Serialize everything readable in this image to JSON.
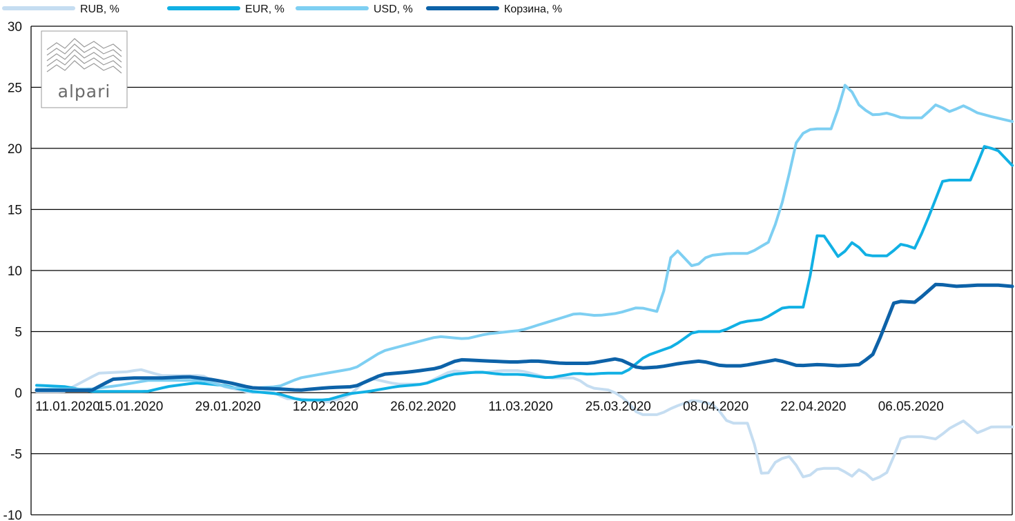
{
  "chart_data": {
    "type": "line",
    "title": "",
    "xlabel": "",
    "ylabel": "",
    "ylim": [
      -10,
      30
    ],
    "yticks": [
      30,
      25,
      20,
      15,
      10,
      5,
      0,
      -5,
      -10
    ],
    "grid": true,
    "legend_position": "top",
    "x_tick_labels": [
      "11.01.2020",
      "15.01.2020",
      "29.01.2020",
      "12.02.2020",
      "26.02.2020",
      "11.03.2020",
      "25.03.2020",
      "08.04.2020",
      "22.04.2020",
      "06.05.2020"
    ],
    "x_tick_index": [
      0,
      9,
      23,
      37,
      51,
      65,
      79,
      93,
      107,
      121
    ],
    "n_points": 141,
    "series": [
      {
        "name": "RUB, %",
        "color": "#c5ddf1",
        "keys": [
          [
            0,
            0.1
          ],
          [
            4,
            0.1
          ],
          [
            9,
            1.6
          ],
          [
            13,
            1.7
          ],
          [
            15,
            1.9
          ],
          [
            18,
            1.4
          ],
          [
            24,
            1.4
          ],
          [
            27,
            0.5
          ],
          [
            31,
            0
          ],
          [
            34,
            0.1
          ],
          [
            36,
            -0.5
          ],
          [
            38,
            -0.5
          ],
          [
            42,
            -0.8
          ],
          [
            45,
            -0.3
          ],
          [
            48,
            1.2
          ],
          [
            52,
            0.7
          ],
          [
            56,
            0.7
          ],
          [
            60,
            1.8
          ],
          [
            64,
            1.6
          ],
          [
            67,
            1.8
          ],
          [
            70,
            1.8
          ],
          [
            74,
            1.2
          ],
          [
            78,
            1.2
          ],
          [
            80,
            0.4
          ],
          [
            83,
            0.2
          ],
          [
            85,
            -0.5
          ],
          [
            87,
            -1.8
          ],
          [
            90,
            -1.8
          ],
          [
            92,
            -1.2
          ],
          [
            95,
            -0.6
          ],
          [
            98,
            -1.0
          ],
          [
            100,
            -2.5
          ],
          [
            103,
            -2.5
          ],
          [
            105,
            -7.2
          ],
          [
            107,
            -5.5
          ],
          [
            109,
            -5.2
          ],
          [
            111,
            -7.1
          ],
          [
            113,
            -6.2
          ],
          [
            116,
            -6.2
          ],
          [
            118,
            -6.9
          ],
          [
            119,
            -6.2
          ],
          [
            121,
            -7.2
          ],
          [
            123,
            -6.5
          ],
          [
            125,
            -3.6
          ],
          [
            128,
            -3.6
          ],
          [
            130,
            -3.8
          ],
          [
            132,
            -2.9
          ],
          [
            134,
            -2.3
          ],
          [
            136,
            -3.3
          ],
          [
            138,
            -2.8
          ],
          [
            141,
            -2.8
          ]
        ]
      },
      {
        "name": "EUR, %",
        "color": "#11b0e4",
        "keys": [
          [
            0,
            0.6
          ],
          [
            4,
            0.5
          ],
          [
            8,
            0.1
          ],
          [
            12,
            0.1
          ],
          [
            16,
            0.1
          ],
          [
            19,
            0.5
          ],
          [
            23,
            0.8
          ],
          [
            27,
            0.6
          ],
          [
            31,
            0.1
          ],
          [
            35,
            -0.1
          ],
          [
            38,
            -0.6
          ],
          [
            42,
            -0.6
          ],
          [
            45,
            -0.1
          ],
          [
            48,
            0.1
          ],
          [
            52,
            0.5
          ],
          [
            56,
            0.7
          ],
          [
            60,
            1.5
          ],
          [
            64,
            1.7
          ],
          [
            67,
            1.5
          ],
          [
            70,
            1.5
          ],
          [
            74,
            1.2
          ],
          [
            78,
            1.6
          ],
          [
            80,
            1.5
          ],
          [
            82,
            1.6
          ],
          [
            85,
            1.6
          ],
          [
            88,
            3.0
          ],
          [
            92,
            3.8
          ],
          [
            95,
            5.0
          ],
          [
            99,
            5.0
          ],
          [
            102,
            5.8
          ],
          [
            105,
            6.0
          ],
          [
            108,
            7.0
          ],
          [
            111,
            7.0
          ],
          [
            113,
            13.5
          ],
          [
            116,
            11.0
          ],
          [
            118,
            12.4
          ],
          [
            120,
            11.2
          ],
          [
            123,
            11.2
          ],
          [
            125,
            12.2
          ],
          [
            127,
            11.8
          ],
          [
            129,
            14.5
          ],
          [
            131,
            17.4
          ],
          [
            135,
            17.4
          ],
          [
            137,
            20.2
          ],
          [
            139,
            19.8
          ],
          [
            141,
            18.6
          ]
        ]
      },
      {
        "name": "USD, %",
        "color": "#7ecff2",
        "keys": [
          [
            0,
            0.3
          ],
          [
            4,
            0.3
          ],
          [
            8,
            0.3
          ],
          [
            12,
            0.6
          ],
          [
            16,
            1.0
          ],
          [
            20,
            1.0
          ],
          [
            24,
            1.0
          ],
          [
            28,
            0.4
          ],
          [
            32,
            0.4
          ],
          [
            35,
            0.5
          ],
          [
            38,
            1.2
          ],
          [
            42,
            1.6
          ],
          [
            46,
            2.0
          ],
          [
            50,
            3.4
          ],
          [
            54,
            4.0
          ],
          [
            58,
            4.6
          ],
          [
            62,
            4.4
          ],
          [
            65,
            4.8
          ],
          [
            70,
            5.1
          ],
          [
            74,
            5.8
          ],
          [
            78,
            6.5
          ],
          [
            81,
            6.3
          ],
          [
            84,
            6.5
          ],
          [
            87,
            7.0
          ],
          [
            90,
            6.6
          ],
          [
            92,
            12.0
          ],
          [
            95,
            10.2
          ],
          [
            97,
            11.2
          ],
          [
            100,
            11.4
          ],
          [
            103,
            11.4
          ],
          [
            106,
            12.4
          ],
          [
            108,
            16.0
          ],
          [
            110,
            21.0
          ],
          [
            112,
            21.6
          ],
          [
            115,
            21.6
          ],
          [
            117,
            25.5
          ],
          [
            119,
            23.4
          ],
          [
            121,
            22.7
          ],
          [
            123,
            22.9
          ],
          [
            125,
            22.5
          ],
          [
            128,
            22.5
          ],
          [
            130,
            23.6
          ],
          [
            132,
            23.0
          ],
          [
            134,
            23.5
          ],
          [
            136,
            22.9
          ],
          [
            138,
            22.6
          ],
          [
            141,
            22.2
          ]
        ]
      },
      {
        "name": "Корзина, %",
        "color": "#0d62a8",
        "keys": [
          [
            0,
            0.2
          ],
          [
            4,
            0.2
          ],
          [
            8,
            0.2
          ],
          [
            11,
            1.1
          ],
          [
            14,
            1.2
          ],
          [
            18,
            1.2
          ],
          [
            22,
            1.3
          ],
          [
            25,
            1.1
          ],
          [
            28,
            0.8
          ],
          [
            31,
            0.4
          ],
          [
            35,
            0.3
          ],
          [
            38,
            0.2
          ],
          [
            42,
            0.4
          ],
          [
            46,
            0.5
          ],
          [
            50,
            1.5
          ],
          [
            54,
            1.7
          ],
          [
            58,
            2.0
          ],
          [
            61,
            2.7
          ],
          [
            65,
            2.6
          ],
          [
            69,
            2.5
          ],
          [
            72,
            2.6
          ],
          [
            76,
            2.4
          ],
          [
            80,
            2.4
          ],
          [
            84,
            2.8
          ],
          [
            87,
            2.0
          ],
          [
            90,
            2.1
          ],
          [
            93,
            2.4
          ],
          [
            96,
            2.6
          ],
          [
            99,
            2.2
          ],
          [
            102,
            2.2
          ],
          [
            105,
            2.5
          ],
          [
            107,
            2.7
          ],
          [
            110,
            2.2
          ],
          [
            113,
            2.3
          ],
          [
            116,
            2.2
          ],
          [
            119,
            2.3
          ],
          [
            121,
            3.2
          ],
          [
            124,
            7.5
          ],
          [
            127,
            7.4
          ],
          [
            130,
            8.9
          ],
          [
            133,
            8.7
          ],
          [
            136,
            8.8
          ],
          [
            139,
            8.8
          ],
          [
            141,
            8.7
          ]
        ]
      }
    ]
  },
  "legend": {
    "items": [
      {
        "label": "RUB, %",
        "color": "#c5ddf1"
      },
      {
        "label": "EUR, %",
        "color": "#11b0e4"
      },
      {
        "label": "USD, %",
        "color": "#7ecff2"
      },
      {
        "label": "Корзина, %",
        "color": "#0d62a8"
      }
    ]
  },
  "logo": {
    "text": "alpari"
  }
}
